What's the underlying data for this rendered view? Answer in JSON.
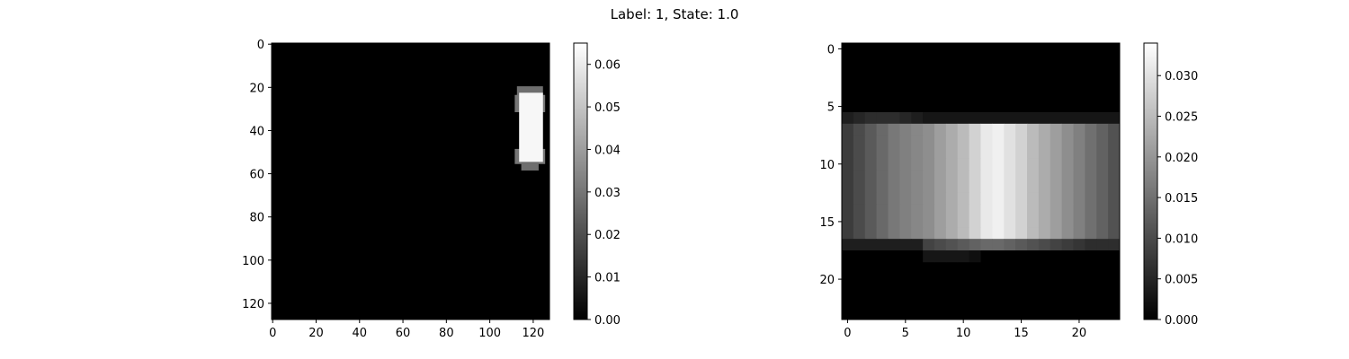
{
  "figure": {
    "title": "Label: 1, State: 1.0"
  },
  "chart_data": [
    {
      "type": "heatmap",
      "name": "left-image",
      "colormap": "gray",
      "image_size": [
        128,
        128
      ],
      "xlim": [
        -0.5,
        127.5
      ],
      "ylim": [
        127.5,
        -0.5
      ],
      "xticks": [
        0,
        20,
        40,
        60,
        80,
        100,
        120
      ],
      "yticks": [
        0,
        20,
        40,
        60,
        80,
        100,
        120
      ],
      "background": 0.0,
      "regions": [
        {
          "x0": 113,
          "x1": 124,
          "y0": 20,
          "y1": 25,
          "value": 0.028
        },
        {
          "x0": 112,
          "x1": 125,
          "y0": 24,
          "y1": 31,
          "value": 0.03
        },
        {
          "x0": 112,
          "x1": 125,
          "y0": 49,
          "y1": 55,
          "value": 0.03
        },
        {
          "x0": 115,
          "x1": 122,
          "y0": 54,
          "y1": 58,
          "value": 0.028
        },
        {
          "x0": 114,
          "x1": 124,
          "y0": 23,
          "y1": 54,
          "value": 0.063
        }
      ],
      "colorbar": {
        "vmin": 0.0,
        "vmax": 0.065,
        "ticks": [
          0.0,
          0.01,
          0.02,
          0.03,
          0.04,
          0.05,
          0.06
        ],
        "tick_labels": [
          "0.00",
          "0.01",
          "0.02",
          "0.03",
          "0.04",
          "0.05",
          "0.06"
        ]
      }
    },
    {
      "type": "heatmap",
      "name": "right-image",
      "colormap": "gray",
      "image_size": [
        24,
        24
      ],
      "xlim": [
        -0.5,
        23.5
      ],
      "ylim": [
        23.5,
        -0.5
      ],
      "xticks": [
        0,
        5,
        10,
        15,
        20
      ],
      "yticks": [
        0,
        5,
        10,
        15,
        20
      ],
      "rows": [
        {
          "row": 6,
          "values": [
            0.004,
            0.005,
            0.006,
            0.006,
            0.006,
            0.005,
            0.004,
            0.003,
            0.003,
            0.003,
            0.003,
            0.003,
            0.003,
            0.003,
            0.003,
            0.003,
            0.003,
            0.003,
            0.003,
            0.003,
            0.003,
            0.003,
            0.003,
            0.003
          ]
        },
        {
          "row": 7,
          "values": [
            0.008,
            0.01,
            0.012,
            0.014,
            0.016,
            0.017,
            0.018,
            0.019,
            0.021,
            0.023,
            0.025,
            0.028,
            0.031,
            0.032,
            0.03,
            0.028,
            0.025,
            0.023,
            0.021,
            0.019,
            0.017,
            0.015,
            0.013,
            0.011
          ]
        },
        {
          "row": 8,
          "values": [
            0.008,
            0.01,
            0.012,
            0.014,
            0.016,
            0.017,
            0.018,
            0.019,
            0.021,
            0.023,
            0.025,
            0.028,
            0.031,
            0.032,
            0.03,
            0.028,
            0.025,
            0.023,
            0.021,
            0.019,
            0.017,
            0.015,
            0.013,
            0.011
          ]
        },
        {
          "row": 9,
          "values": [
            0.008,
            0.01,
            0.012,
            0.014,
            0.016,
            0.017,
            0.018,
            0.019,
            0.021,
            0.023,
            0.025,
            0.028,
            0.031,
            0.032,
            0.03,
            0.028,
            0.025,
            0.023,
            0.021,
            0.019,
            0.017,
            0.015,
            0.013,
            0.011
          ]
        },
        {
          "row": 10,
          "values": [
            0.008,
            0.01,
            0.012,
            0.014,
            0.016,
            0.017,
            0.018,
            0.019,
            0.021,
            0.023,
            0.025,
            0.028,
            0.031,
            0.032,
            0.03,
            0.028,
            0.025,
            0.023,
            0.021,
            0.019,
            0.017,
            0.015,
            0.013,
            0.011
          ]
        },
        {
          "row": 11,
          "values": [
            0.008,
            0.01,
            0.012,
            0.014,
            0.016,
            0.017,
            0.018,
            0.019,
            0.021,
            0.023,
            0.025,
            0.028,
            0.031,
            0.032,
            0.03,
            0.028,
            0.025,
            0.023,
            0.021,
            0.019,
            0.017,
            0.015,
            0.013,
            0.011
          ]
        },
        {
          "row": 12,
          "values": [
            0.008,
            0.01,
            0.012,
            0.014,
            0.016,
            0.017,
            0.018,
            0.019,
            0.021,
            0.023,
            0.025,
            0.028,
            0.031,
            0.032,
            0.03,
            0.028,
            0.025,
            0.023,
            0.021,
            0.019,
            0.017,
            0.015,
            0.013,
            0.011
          ]
        },
        {
          "row": 13,
          "values": [
            0.008,
            0.01,
            0.012,
            0.014,
            0.016,
            0.017,
            0.018,
            0.019,
            0.021,
            0.023,
            0.025,
            0.028,
            0.031,
            0.032,
            0.03,
            0.028,
            0.025,
            0.023,
            0.021,
            0.019,
            0.017,
            0.015,
            0.013,
            0.011
          ]
        },
        {
          "row": 14,
          "values": [
            0.008,
            0.01,
            0.012,
            0.014,
            0.016,
            0.017,
            0.018,
            0.019,
            0.021,
            0.023,
            0.025,
            0.028,
            0.031,
            0.032,
            0.03,
            0.028,
            0.025,
            0.023,
            0.021,
            0.019,
            0.017,
            0.015,
            0.013,
            0.011
          ]
        },
        {
          "row": 15,
          "values": [
            0.008,
            0.01,
            0.012,
            0.014,
            0.016,
            0.017,
            0.018,
            0.019,
            0.021,
            0.023,
            0.025,
            0.028,
            0.031,
            0.032,
            0.03,
            0.028,
            0.025,
            0.023,
            0.021,
            0.019,
            0.017,
            0.015,
            0.013,
            0.011
          ]
        },
        {
          "row": 16,
          "values": [
            0.008,
            0.01,
            0.012,
            0.014,
            0.016,
            0.017,
            0.018,
            0.019,
            0.021,
            0.023,
            0.025,
            0.028,
            0.031,
            0.032,
            0.03,
            0.028,
            0.025,
            0.023,
            0.021,
            0.019,
            0.017,
            0.015,
            0.013,
            0.011
          ]
        },
        {
          "row": 17,
          "values": [
            0.004,
            0.004,
            0.004,
            0.004,
            0.004,
            0.004,
            0.004,
            0.009,
            0.01,
            0.011,
            0.012,
            0.013,
            0.014,
            0.014,
            0.013,
            0.012,
            0.011,
            0.01,
            0.009,
            0.008,
            0.007,
            0.006,
            0.006,
            0.006
          ]
        },
        {
          "row": 18,
          "values": [
            0.0,
            0.0,
            0.0,
            0.0,
            0.0,
            0.0,
            0.0,
            0.003,
            0.003,
            0.003,
            0.003,
            0.002,
            0.0,
            0.0,
            0.0,
            0.0,
            0.0,
            0.0,
            0.0,
            0.0,
            0.0,
            0.0,
            0.0,
            0.0
          ]
        }
      ],
      "colorbar": {
        "vmin": 0.0,
        "vmax": 0.034,
        "ticks": [
          0.0,
          0.005,
          0.01,
          0.015,
          0.02,
          0.025,
          0.03
        ],
        "tick_labels": [
          "0.000",
          "0.005",
          "0.010",
          "0.015",
          "0.020",
          "0.025",
          "0.030"
        ]
      }
    }
  ]
}
